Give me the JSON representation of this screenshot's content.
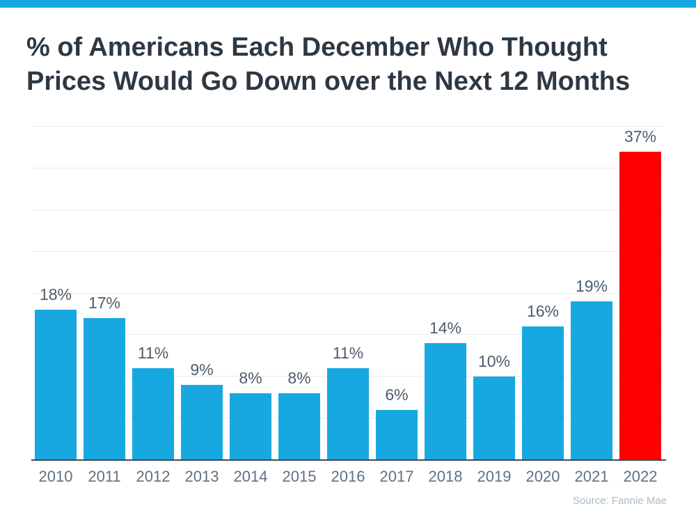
{
  "accent_color": "#18a8e1",
  "header": {
    "title_line1": "% of Americans Each December Who Thought",
    "title_line2": "Prices Would Go Down over the Next 12 Months"
  },
  "source": "Source: Fannie Mae",
  "chart_data": {
    "type": "bar",
    "title": "% of Americans Each December Who Thought Prices Would Go Down over the Next 12 Months",
    "categories": [
      "2010",
      "2011",
      "2012",
      "2013",
      "2014",
      "2015",
      "2016",
      "2017",
      "2018",
      "2019",
      "2020",
      "2021",
      "2022"
    ],
    "values": [
      18,
      17,
      11,
      9,
      8,
      8,
      11,
      6,
      14,
      10,
      16,
      19,
      37
    ],
    "value_labels": [
      "18%",
      "17%",
      "11%",
      "9%",
      "8%",
      "8%",
      "11%",
      "6%",
      "14%",
      "10%",
      "16%",
      "19%",
      "37%"
    ],
    "unit": "%",
    "xlabel": "",
    "ylabel": "",
    "ylim": [
      0,
      40
    ],
    "gridline_step": 5,
    "grid": true,
    "legend": false,
    "bar_color": "#18a8e1",
    "highlight": {
      "category": "2022",
      "color": "#fe0000"
    },
    "annotations": [
      "Source: Fannie Mae"
    ]
  }
}
